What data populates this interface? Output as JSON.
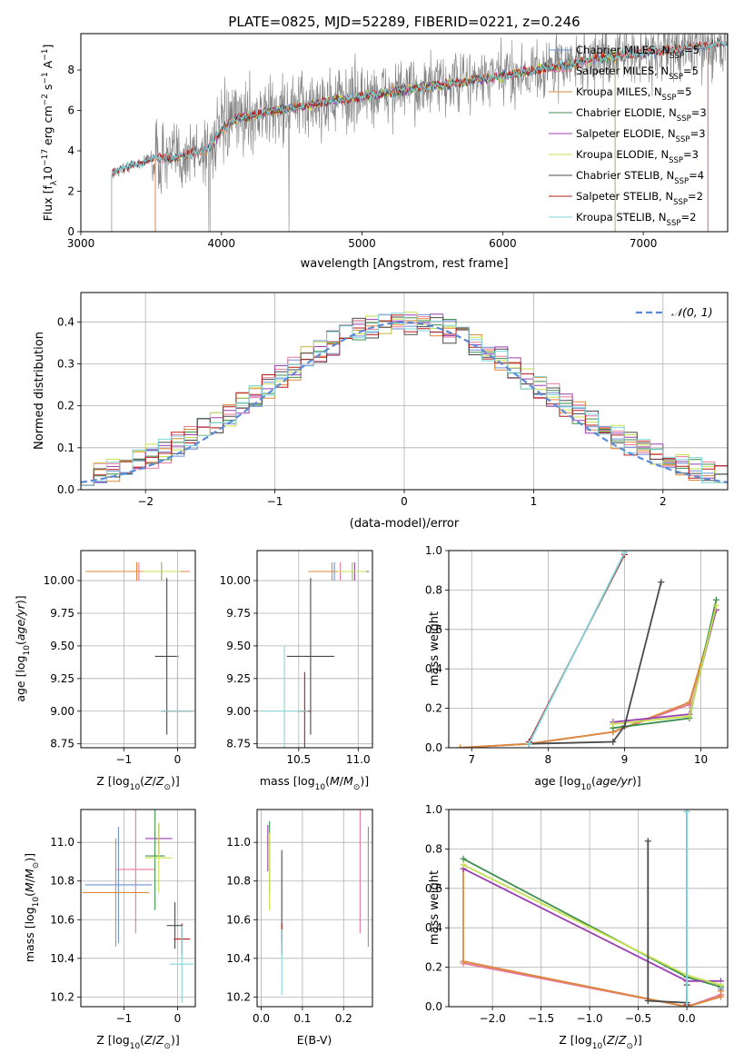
{
  "figure_title": "PLATE=0825, MJD=52289, FIBERID=0221, z=0.246",
  "series_colors": {
    "Chabrier MILES": "#6e90d6",
    "Salpeter MILES": "#e9779b",
    "Kroupa MILES": "#df8a3a",
    "Chabrier ELODIE": "#3f8f4f",
    "Salpeter ELODIE": "#9c3fb4",
    "Kroupa ELODIE": "#c6e04f",
    "Chabrier STELIB": "#4a4a4a",
    "Salpeter STELIB": "#b81c1c",
    "Kroupa STELIB": "#7fd6dc"
  },
  "chart_data": [
    {
      "id": "spectrum",
      "type": "line",
      "xlabel": "wavelength [Angstrom, rest frame]",
      "ylabel": "Flux [f_λ10^-17 erg cm^-2 s^-1 A^-1]",
      "xlim": [
        3000,
        7600
      ],
      "ylim": [
        0,
        9.8
      ],
      "xticks": [
        "3000",
        "4000",
        "5000",
        "6000",
        "7000"
      ],
      "yticks": [
        "0",
        "2",
        "4",
        "6",
        "8"
      ],
      "grid": false,
      "legend_position": "top-right",
      "data_series": {
        "name": "data",
        "color": "#808080"
      },
      "legend": [
        {
          "name": "Chabrier MILES",
          "label": "Chabrier MILES, N_SSP=5"
        },
        {
          "name": "Salpeter MILES",
          "label": "Salpeter MILES, N_SSP=5"
        },
        {
          "name": "Kroupa MILES",
          "label": "Kroupa MILES, N_SSP=5"
        },
        {
          "name": "Chabrier ELODIE",
          "label": "Chabrier ELODIE, N_SSP=3"
        },
        {
          "name": "Salpeter ELODIE",
          "label": "Salpeter ELODIE, N_SSP=3"
        },
        {
          "name": "Kroupa ELODIE",
          "label": "Kroupa ELODIE, N_SSP=3"
        },
        {
          "name": "Chabrier STELIB",
          "label": "Chabrier STELIB, N_SSP=4"
        },
        {
          "name": "Salpeter STELIB",
          "label": "Salpeter STELIB, N_SSP=2"
        },
        {
          "name": "Kroupa STELIB",
          "label": "Kroupa STELIB, N_SSP=2"
        }
      ],
      "continuum": {
        "x": [
          3220,
          3500,
          3700,
          3900,
          4000,
          4100,
          4400,
          4800,
          5200,
          5600,
          6000,
          6400,
          6800,
          7200,
          7600
        ],
        "y": [
          2.9,
          3.6,
          3.7,
          4.1,
          5.0,
          5.6,
          6.0,
          6.5,
          6.9,
          7.3,
          7.7,
          8.2,
          8.7,
          9.0,
          9.3
        ]
      },
      "model_ranges": [
        {
          "name": "Chabrier MILES",
          "x0": 3530,
          "x1": 7460
        },
        {
          "name": "Salpeter MILES",
          "x0": 3530,
          "x1": 7460
        },
        {
          "name": "Kroupa MILES",
          "x0": 3530,
          "x1": 7460
        },
        {
          "name": "Chabrier ELODIE",
          "x0": 3920,
          "x1": 6800
        },
        {
          "name": "Salpeter ELODIE",
          "x0": 3920,
          "x1": 6800
        },
        {
          "name": "Kroupa ELODIE",
          "x0": 3920,
          "x1": 6800
        },
        {
          "name": "Chabrier STELIB",
          "x0": 3220,
          "x1": 7600
        },
        {
          "name": "Salpeter STELIB",
          "x0": 3220,
          "x1": 7600
        },
        {
          "name": "Kroupa STELIB",
          "x0": 3220,
          "x1": 7600
        }
      ]
    },
    {
      "id": "residuals",
      "type": "histogram",
      "xlabel": "(data-model)/error",
      "ylabel": "Normed distribution",
      "xlim": [
        -2.5,
        2.5
      ],
      "ylim": [
        0,
        0.47
      ],
      "xticks": [
        "−2",
        "−1",
        "0",
        "1",
        "2"
      ],
      "yticks": [
        "0.0",
        "0.1",
        "0.2",
        "0.3",
        "0.4"
      ],
      "grid": true,
      "legend_position": "top-right",
      "reference": {
        "name": "𝒩(0, 1)",
        "color": "#5b8bd6",
        "style": "dashed"
      },
      "bin_width": 0.1,
      "bin_start": -2.5
    },
    {
      "id": "age_vs_Z",
      "type": "errorbar",
      "xlabel": "Z [log10(Z/Z⊙)]",
      "ylabel": "age [log10(age/yr)]",
      "xlim": [
        -1.8,
        0.33
      ],
      "ylim": [
        8.72,
        10.23
      ],
      "xticks": [
        "−1",
        "0"
      ],
      "yticks": [
        "8.75",
        "9.00",
        "9.25",
        "9.50",
        "9.75",
        "10.00"
      ],
      "grid": true,
      "points": [
        {
          "name": "Chabrier MILES",
          "x": -0.76,
          "xerr": 0.95,
          "y": 10.07,
          "yerr": 0.07
        },
        {
          "name": "Salpeter MILES",
          "x": -0.72,
          "xerr": 0.95,
          "y": 10.07,
          "yerr": 0.07
        },
        {
          "name": "Kroupa MILES",
          "x": -0.76,
          "xerr": 0.95,
          "y": 10.07,
          "yerr": 0.07
        },
        {
          "name": "Chabrier ELODIE",
          "x": -0.3,
          "xerr": 0.35,
          "y": 10.07,
          "yerr": 0.07
        },
        {
          "name": "Salpeter ELODIE",
          "x": -0.3,
          "xerr": 0.35,
          "y": 10.07,
          "yerr": 0.07
        },
        {
          "name": "Kroupa ELODIE",
          "x": -0.3,
          "xerr": 0.35,
          "y": 10.07,
          "yerr": 0.07
        },
        {
          "name": "Chabrier STELIB",
          "x": -0.2,
          "xerr": 0.22,
          "y": 9.42,
          "yerr": 0.6
        },
        {
          "name": "Salpeter STELIB",
          "x": 0.0,
          "xerr": 0.3,
          "y": 9.0,
          "yerr": 0.3
        },
        {
          "name": "Kroupa STELIB",
          "x": 0.0,
          "xerr": 0.3,
          "y": 9.0,
          "yerr": 0.5
        }
      ]
    },
    {
      "id": "age_vs_mass",
      "type": "errorbar",
      "xlabel": "mass [log10(M/M⊙)]",
      "ylabel": "",
      "xlim": [
        10.15,
        11.12
      ],
      "ylim": [
        8.72,
        10.23
      ],
      "xticks": [
        "10.5",
        "11.0"
      ],
      "yticks": [
        "8.75",
        "9.00",
        "9.25",
        "9.50",
        "9.75",
        "10.00"
      ],
      "grid": true,
      "points": [
        {
          "name": "Chabrier MILES",
          "x": 10.8,
          "xerr": 0.2,
          "y": 10.07,
          "yerr": 0.07
        },
        {
          "name": "Salpeter MILES",
          "x": 10.85,
          "xerr": 0.2,
          "y": 10.07,
          "yerr": 0.07
        },
        {
          "name": "Kroupa MILES",
          "x": 10.78,
          "xerr": 0.2,
          "y": 10.07,
          "yerr": 0.07
        },
        {
          "name": "Chabrier ELODIE",
          "x": 10.95,
          "xerr": 0.12,
          "y": 10.07,
          "yerr": 0.07
        },
        {
          "name": "Salpeter ELODIE",
          "x": 10.97,
          "xerr": 0.12,
          "y": 10.07,
          "yerr": 0.07
        },
        {
          "name": "Kroupa ELODIE",
          "x": 10.95,
          "xerr": 0.12,
          "y": 10.07,
          "yerr": 0.07
        },
        {
          "name": "Chabrier STELIB",
          "x": 10.6,
          "xerr": 0.2,
          "y": 9.42,
          "yerr": 0.6
        },
        {
          "name": "Salpeter STELIB",
          "x": 10.55,
          "xerr": 0.05,
          "y": 9.0,
          "yerr": 0.3
        },
        {
          "name": "Kroupa STELIB",
          "x": 10.38,
          "xerr": 0.2,
          "y": 9.0,
          "yerr": 0.5
        }
      ]
    },
    {
      "id": "weight_vs_age",
      "type": "line",
      "xlabel": "age [log10(age/yr)]",
      "ylabel": "mass weight",
      "xlim": [
        6.7,
        10.35
      ],
      "ylim": [
        0,
        1
      ],
      "xticks": [
        "7",
        "8",
        "9",
        "10"
      ],
      "yticks": [
        "0.0",
        "0.2",
        "0.4",
        "0.6",
        "0.8",
        "1.0"
      ],
      "grid": true,
      "series": [
        {
          "name": "Chabrier MILES",
          "x": [
            6.85,
            7.75,
            8.85,
            9.85,
            10.2
          ],
          "y": [
            0.0,
            0.02,
            0.08,
            0.22,
            0.7
          ]
        },
        {
          "name": "Salpeter MILES",
          "x": [
            6.85,
            7.75,
            8.85,
            9.85,
            10.2
          ],
          "y": [
            0.0,
            0.02,
            0.08,
            0.22,
            0.7
          ]
        },
        {
          "name": "Kroupa MILES",
          "x": [
            6.85,
            7.75,
            8.85,
            9.85,
            10.2
          ],
          "y": [
            0.0,
            0.02,
            0.08,
            0.23,
            0.7
          ]
        },
        {
          "name": "Chabrier ELODIE",
          "x": [
            8.85,
            9.85,
            10.2
          ],
          "y": [
            0.1,
            0.15,
            0.75
          ]
        },
        {
          "name": "Salpeter ELODIE",
          "x": [
            8.85,
            9.85,
            10.2
          ],
          "y": [
            0.13,
            0.17,
            0.7
          ]
        },
        {
          "name": "Kroupa ELODIE",
          "x": [
            8.85,
            9.85,
            10.2
          ],
          "y": [
            0.12,
            0.16,
            0.72
          ]
        },
        {
          "name": "Chabrier STELIB",
          "x": [
            7.75,
            8.85,
            9.0,
            9.48
          ],
          "y": [
            0.02,
            0.03,
            0.11,
            0.84
          ]
        },
        {
          "name": "Salpeter STELIB",
          "x": [
            7.75,
            9.0
          ],
          "y": [
            0.03,
            0.98
          ]
        },
        {
          "name": "Kroupa STELIB",
          "x": [
            7.75,
            9.0
          ],
          "y": [
            0.02,
            0.99
          ]
        }
      ]
    },
    {
      "id": "mass_vs_Z",
      "type": "errorbar",
      "xlabel": "Z [log10(Z/Z⊙)]",
      "ylabel": "mass [log10(M/M⊙)]",
      "xlim": [
        -1.8,
        0.33
      ],
      "ylim": [
        10.15,
        11.17
      ],
      "xticks": [
        "−1",
        "0"
      ],
      "yticks": [
        "10.2",
        "10.4",
        "10.6",
        "10.8",
        "11.0"
      ],
      "grid": true,
      "points": [
        {
          "name": "Chabrier MILES",
          "x": -1.1,
          "xerr": 0.62,
          "y": 10.78,
          "yerr": 0.3
        },
        {
          "name": "Salpeter MILES",
          "x": -0.78,
          "xerr": 0.35,
          "y": 10.86,
          "yerr": 0.33
        },
        {
          "name": "Kroupa MILES",
          "x": -1.15,
          "xerr": 0.62,
          "y": 10.74,
          "yerr": 0.28
        },
        {
          "name": "Chabrier ELODIE",
          "x": -0.42,
          "xerr": 0.18,
          "y": 10.93,
          "yerr": 0.28
        },
        {
          "name": "Salpeter ELODIE",
          "x": -0.35,
          "xerr": 0.25,
          "y": 11.02,
          "yerr": 0.08
        },
        {
          "name": "Kroupa ELODIE",
          "x": -0.35,
          "xerr": 0.25,
          "y": 10.92,
          "yerr": 0.18
        },
        {
          "name": "Chabrier STELIB",
          "x": -0.05,
          "xerr": 0.15,
          "y": 10.57,
          "yerr": 0.12
        },
        {
          "name": "Salpeter STELIB",
          "x": 0.08,
          "xerr": 0.15,
          "y": 10.5,
          "yerr": 0.08
        },
        {
          "name": "Kroupa STELIB",
          "x": 0.08,
          "xerr": 0.22,
          "y": 10.37,
          "yerr": 0.2
        }
      ]
    },
    {
      "id": "mass_vs_ebv",
      "type": "errorbar",
      "xlabel": "E(B-V)",
      "ylabel": "",
      "xlim": [
        -0.01,
        0.27
      ],
      "ylim": [
        10.15,
        11.17
      ],
      "xticks": [
        "0.0",
        "0.1",
        "0.2"
      ],
      "yticks": [
        "10.2",
        "10.4",
        "10.6",
        "10.8",
        "11.0"
      ],
      "grid": true,
      "points": [
        {
          "name": "Chabrier MILES",
          "x": 0.26,
          "xerr": 0,
          "y": 10.78,
          "yerr": 0.3
        },
        {
          "name": "Salpeter MILES",
          "x": 0.24,
          "xerr": 0,
          "y": 10.86,
          "yerr": 0.33
        },
        {
          "name": "Kroupa MILES",
          "x": 0.26,
          "xerr": 0,
          "y": 10.74,
          "yerr": 0.28
        },
        {
          "name": "Chabrier ELODIE",
          "x": 0.02,
          "xerr": 0,
          "y": 10.93,
          "yerr": 0.18
        },
        {
          "name": "Salpeter ELODIE",
          "x": 0.016,
          "xerr": 0,
          "y": 10.97,
          "yerr": 0.12
        },
        {
          "name": "Kroupa ELODIE",
          "x": 0.02,
          "xerr": 0,
          "y": 10.85,
          "yerr": 0.2
        },
        {
          "name": "Chabrier STELIB",
          "x": 0.05,
          "xerr": 0,
          "y": 10.72,
          "yerr": 0.24
        },
        {
          "name": "Salpeter STELIB",
          "x": 0.05,
          "xerr": 0,
          "y": 10.5,
          "yerr": 0.08
        },
        {
          "name": "Kroupa STELIB",
          "x": 0.05,
          "xerr": 0,
          "y": 10.38,
          "yerr": 0.17
        }
      ]
    },
    {
      "id": "weight_vs_Z",
      "type": "line",
      "xlabel": "Z [log10(Z/Z⊙)]",
      "ylabel": "mass weight",
      "xlim": [
        -2.45,
        0.42
      ],
      "ylim": [
        0,
        1
      ],
      "xticks": [
        "−2.0",
        "−1.5",
        "−1.0",
        "−0.5",
        "0.0"
      ],
      "yticks": [
        "0.0",
        "0.2",
        "0.4",
        "0.6",
        "0.8",
        "1.0"
      ],
      "grid": true,
      "series": [
        {
          "name": "Chabrier MILES",
          "x": [
            -2.3,
            0.0,
            0.35,
            0.35
          ],
          "y": [
            0.23,
            0.0,
            0.06,
            0.09
          ]
        },
        {
          "name": "Salpeter MILES",
          "x": [
            -2.3,
            0.0,
            0.35,
            0.35
          ],
          "y": [
            0.22,
            0.0,
            0.06,
            0.08
          ]
        },
        {
          "name": "Kroupa MILES",
          "x": [
            -2.3,
            -2.3,
            0.0,
            0.35,
            0.35
          ],
          "y": [
            0.7,
            0.23,
            0.0,
            0.05,
            0.08
          ]
        },
        {
          "name": "Chabrier ELODIE",
          "x": [
            -2.3,
            0.0,
            0.35
          ],
          "y": [
            0.75,
            0.15,
            0.1
          ]
        },
        {
          "name": "Salpeter ELODIE",
          "x": [
            -2.3,
            0.0,
            0.35
          ],
          "y": [
            0.7,
            0.13,
            0.13
          ]
        },
        {
          "name": "Kroupa ELODIE",
          "x": [
            -2.3,
            0.0,
            0.35
          ],
          "y": [
            0.72,
            0.16,
            0.11
          ]
        },
        {
          "name": "Chabrier STELIB",
          "x": [
            -0.4,
            -0.4,
            0.0,
            0.0,
            0.0
          ],
          "y": [
            0.84,
            0.03,
            0.02,
            0.11,
            0.0
          ]
        },
        {
          "name": "Salpeter STELIB",
          "x": [
            0.0,
            0.0
          ],
          "y": [
            0.99,
            0.01
          ]
        },
        {
          "name": "Kroupa STELIB",
          "x": [
            0.0,
            0.0
          ],
          "y": [
            0.99,
            0.0
          ]
        }
      ]
    }
  ]
}
